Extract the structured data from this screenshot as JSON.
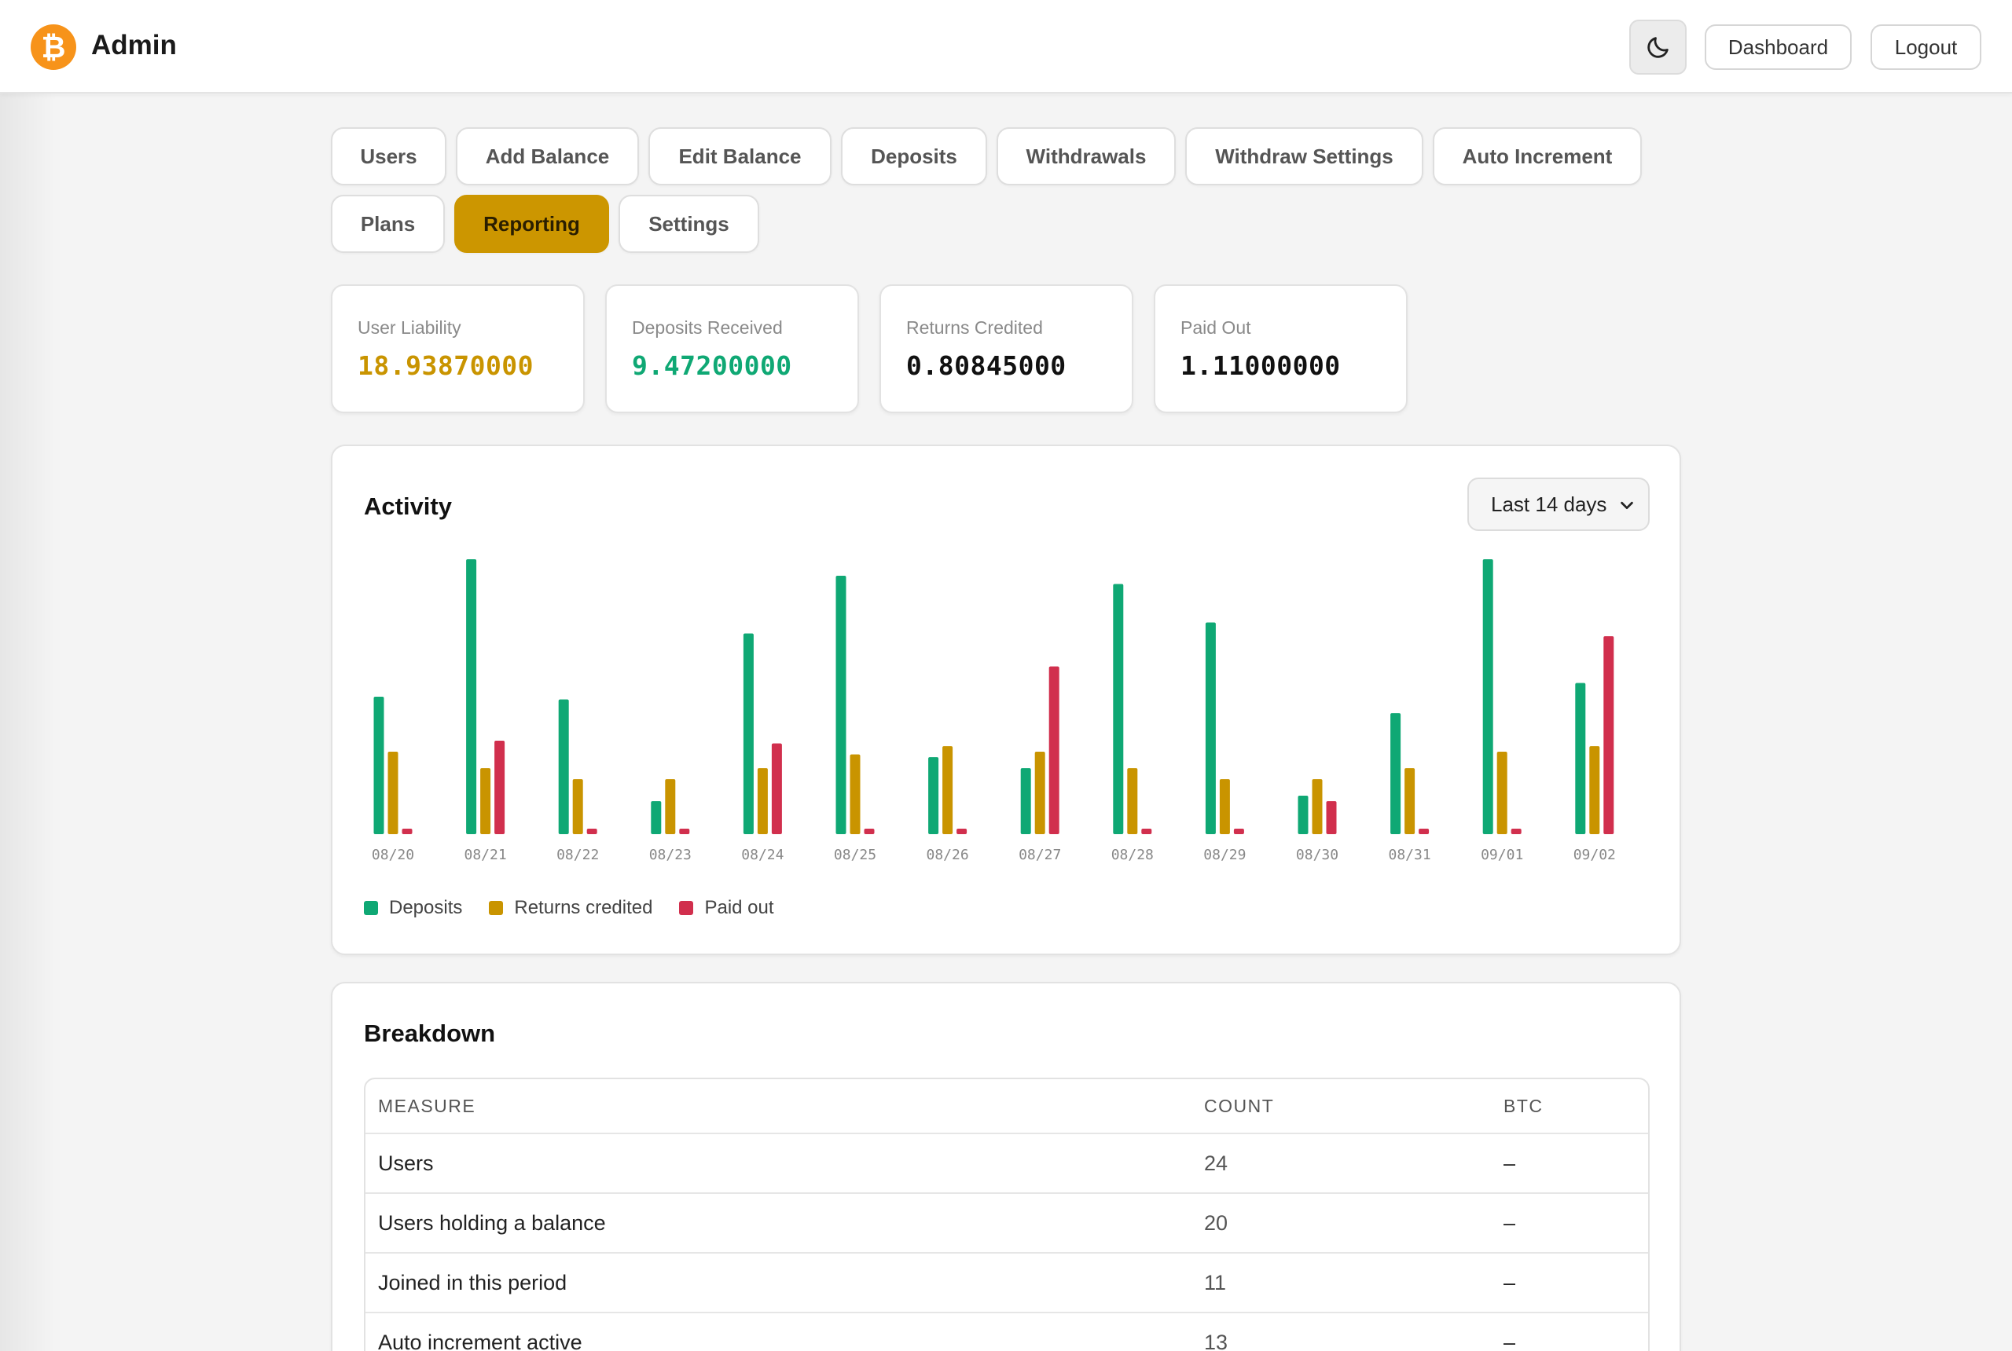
{
  "header": {
    "logo_symbol": "₿",
    "title": "Admin",
    "theme_toggle_icon": "moon-icon",
    "dashboard_label": "Dashboard",
    "logout_label": "Logout"
  },
  "nav": {
    "tabs": [
      {
        "label": "Users",
        "active": false
      },
      {
        "label": "Add Balance",
        "active": false
      },
      {
        "label": "Edit Balance",
        "active": false
      },
      {
        "label": "Deposits",
        "active": false
      },
      {
        "label": "Withdrawals",
        "active": false
      },
      {
        "label": "Withdraw Settings",
        "active": false
      },
      {
        "label": "Auto Increment",
        "active": false
      },
      {
        "label": "Plans",
        "active": false
      },
      {
        "label": "Reporting",
        "active": true
      },
      {
        "label": "Settings",
        "active": false
      }
    ]
  },
  "stats": [
    {
      "label": "User Liability",
      "value": "18.93870000",
      "color": "#c99400"
    },
    {
      "label": "Deposits Received",
      "value": "9.47200000",
      "color": "#0fa874"
    },
    {
      "label": "Returns Credited",
      "value": "0.80845000",
      "color": "#111111"
    },
    {
      "label": "Paid Out",
      "value": "1.11000000",
      "color": "#111111"
    }
  ],
  "activity": {
    "title": "Activity",
    "range_selected": "Last 14 days"
  },
  "chart_data": {
    "type": "bar",
    "categories": [
      "08/20",
      "08/21",
      "08/22",
      "08/23",
      "08/24",
      "08/25",
      "08/26",
      "08/27",
      "08/28",
      "08/29",
      "08/30",
      "08/31",
      "09/01",
      "09/02"
    ],
    "series": [
      {
        "name": "Deposits",
        "color": "#0fa874",
        "values": [
          0.5,
          1.0,
          0.49,
          0.12,
          0.73,
          0.94,
          0.28,
          0.24,
          0.91,
          0.77,
          0.14,
          0.44,
          1.0,
          0.55
        ]
      },
      {
        "name": "Returns credited",
        "color": "#c99400",
        "values": [
          0.3,
          0.24,
          0.2,
          0.2,
          0.24,
          0.29,
          0.32,
          0.3,
          0.24,
          0.2,
          0.2,
          0.24,
          0.3,
          0.32
        ]
      },
      {
        "name": "Paid out",
        "color": "#d12f4d",
        "values": [
          0.02,
          0.34,
          0.02,
          0.02,
          0.33,
          0.02,
          0.02,
          0.61,
          0.02,
          0.02,
          0.12,
          0.02,
          0.02,
          0.72
        ]
      }
    ],
    "ylim": [
      0,
      1
    ],
    "legend_position": "bottom-left",
    "grid": false
  },
  "breakdown": {
    "title": "Breakdown",
    "columns": [
      "MEASURE",
      "COUNT",
      "BTC"
    ],
    "rows": [
      {
        "measure": "Users",
        "count": "24",
        "btc": "–"
      },
      {
        "measure": "Users holding a balance",
        "count": "20",
        "btc": "–"
      },
      {
        "measure": "Joined in this period",
        "count": "11",
        "btc": "–"
      },
      {
        "measure": "Auto increment active",
        "count": "13",
        "btc": "–"
      }
    ]
  }
}
